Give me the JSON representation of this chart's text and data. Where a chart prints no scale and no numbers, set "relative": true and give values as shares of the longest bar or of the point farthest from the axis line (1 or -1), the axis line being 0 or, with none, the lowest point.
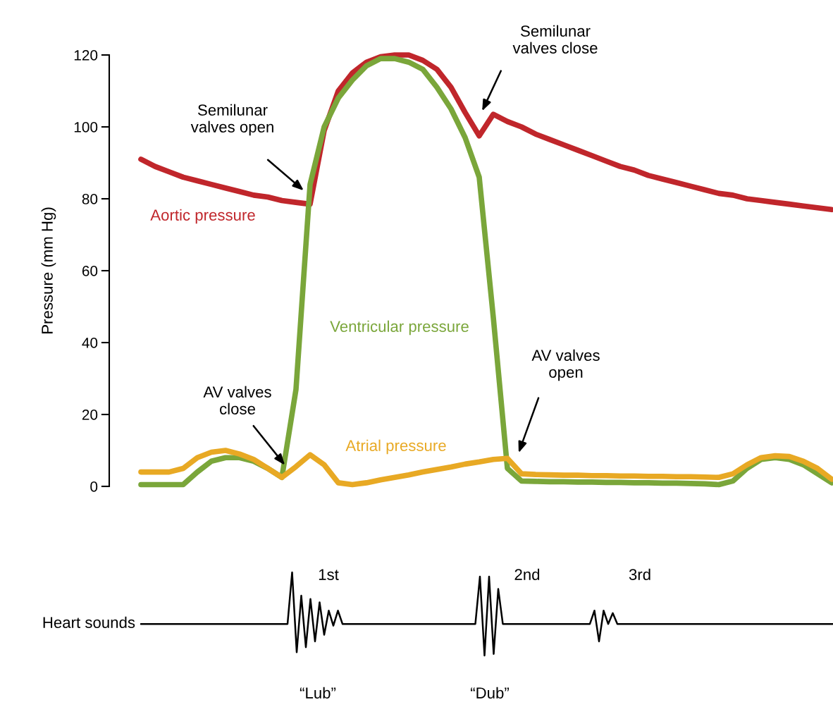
{
  "chart_data": [
    {
      "type": "line",
      "ylabel": "Pressure (mm Hg)",
      "categories": [
        null,
        null,
        null,
        null,
        null,
        null,
        null,
        null,
        null,
        null,
        null,
        null,
        null,
        null,
        null,
        null,
        null,
        null,
        null,
        null,
        null,
        null,
        null,
        null,
        null,
        null,
        null,
        null,
        null,
        null,
        null,
        null,
        null,
        null,
        null,
        null,
        null,
        null,
        null,
        null,
        null,
        null,
        null,
        null,
        null,
        null,
        null,
        null,
        null,
        null
      ],
      "series": [
        {
          "name": "Aortic pressure",
          "color": "#c0262b",
          "values": [
            91,
            89,
            87.5,
            86,
            85,
            84,
            83,
            82,
            81,
            80.5,
            79.5,
            79,
            78.5,
            99,
            110,
            115,
            118,
            119.5,
            120,
            120,
            118.5,
            116,
            111,
            104,
            97.5,
            103.5,
            101.5,
            100,
            98,
            96.5,
            95,
            93.5,
            92,
            90.5,
            89,
            88,
            86.5,
            85.5,
            84.5,
            83.5,
            82.5,
            81.5,
            81,
            80,
            79.5,
            79,
            78.5,
            78,
            77.5,
            77
          ]
        },
        {
          "name": "Ventricular pressure",
          "color": "#7aa63a",
          "values": [
            0.5,
            0.5,
            0.5,
            0.5,
            4,
            7,
            8,
            8,
            7,
            5,
            2.5,
            27,
            84,
            100,
            108,
            113,
            117,
            119,
            119,
            118,
            116,
            111,
            105,
            97,
            86,
            47,
            5,
            1.5,
            1.4,
            1.3,
            1.3,
            1.2,
            1.2,
            1.1,
            1.1,
            1,
            1,
            0.9,
            0.9,
            0.8,
            0.7,
            0.5,
            1.5,
            5,
            7.5,
            8,
            7.5,
            6,
            3.5,
            1
          ]
        },
        {
          "name": "Atrial pressure",
          "color": "#e8a924",
          "values": [
            4,
            4,
            4,
            5,
            8,
            9.5,
            10,
            9,
            7.5,
            5,
            2.5,
            5.5,
            8.8,
            6,
            1,
            0.5,
            1,
            1.8,
            2.5,
            3.2,
            4,
            4.7,
            5.4,
            6.2,
            6.8,
            7.5,
            7.8,
            3.5,
            3.3,
            3.2,
            3.1,
            3.1,
            3,
            3,
            2.9,
            2.9,
            2.8,
            2.8,
            2.7,
            2.7,
            2.6,
            2.5,
            3.5,
            6,
            8,
            8.5,
            8.3,
            7,
            5,
            2
          ]
        }
      ],
      "ylim": [
        0,
        120
      ],
      "yticks": [
        0,
        20,
        40,
        60,
        80,
        100,
        120
      ],
      "grid": false,
      "legend": false,
      "marker": "none",
      "line_style": "solid",
      "annotations": [
        "Semilunar\nvalves open",
        "Semilunar\nvalves close",
        "AV valves\nclose",
        "AV valves\nopen"
      ]
    },
    {
      "type": "line",
      "relative": true,
      "grid": false,
      "legend": false,
      "marker": "none",
      "line_style": "solid",
      "categories": [
        null,
        null,
        null,
        null,
        null,
        null,
        null,
        null,
        null,
        null,
        null,
        null,
        null,
        null,
        null,
        null,
        null,
        null,
        null,
        null,
        null,
        null,
        null,
        null,
        null,
        null,
        null,
        null,
        null,
        null,
        null,
        null,
        null,
        null,
        null,
        null,
        null,
        null,
        null,
        null,
        null,
        null,
        null,
        null,
        null,
        null,
        null,
        null,
        null,
        null,
        null,
        null,
        null,
        null,
        null,
        null,
        null,
        null,
        null,
        null,
        null,
        null,
        null,
        null,
        null,
        null,
        null,
        null,
        null,
        null,
        null,
        null,
        null,
        null,
        null,
        null,
        null,
        null,
        null,
        null,
        null,
        null,
        null,
        null,
        null,
        null,
        null,
        null,
        null,
        null,
        null,
        null,
        null,
        null,
        null,
        null,
        null,
        null,
        null,
        null,
        null,
        null,
        null,
        null,
        null,
        null,
        null,
        null,
        null,
        null,
        null,
        null,
        null,
        null,
        null,
        null,
        null,
        null,
        null,
        null,
        null,
        null,
        null,
        null,
        null,
        null,
        null,
        null,
        null,
        null,
        null,
        null,
        null,
        null,
        null,
        null,
        null,
        null,
        null,
        null,
        null,
        null,
        null,
        null,
        null,
        null,
        null,
        null,
        null,
        null,
        null,
        null
      ],
      "series": [
        {
          "name": "Heart sounds",
          "color": "#000000",
          "values": [
            0.38,
            0.38,
            0.38,
            0.38,
            0.38,
            0.38,
            0.38,
            0.38,
            0.38,
            0.38,
            0.38,
            0.38,
            0.38,
            0.38,
            0.38,
            0.38,
            0.38,
            0.38,
            0.38,
            0.38,
            0.38,
            0.38,
            0.38,
            0.38,
            0.38,
            0.38,
            0.38,
            0.38,
            0.38,
            0.38,
            0.38,
            0.38,
            0.38,
            1,
            0.04,
            0.72,
            0.1,
            0.68,
            0.17,
            0.64,
            0.25,
            0.54,
            0.36,
            0.54,
            0.38,
            0.38,
            0.38,
            0.38,
            0.38,
            0.38,
            0.38,
            0.38,
            0.38,
            0.38,
            0.38,
            0.38,
            0.38,
            0.38,
            0.38,
            0.38,
            0.38,
            0.38,
            0.38,
            0.38,
            0.38,
            0.38,
            0.38,
            0.38,
            0.38,
            0.38,
            0.38,
            0.38,
            0.38,
            0.38,
            0.95,
            0,
            0.95,
            0.02,
            0.8,
            0.38,
            0.38,
            0.38,
            0.38,
            0.38,
            0.38,
            0.38,
            0.38,
            0.38,
            0.38,
            0.38,
            0.38,
            0.38,
            0.38,
            0.38,
            0.38,
            0.38,
            0.38,
            0.38,
            0.38,
            0.54,
            0.17,
            0.54,
            0.38,
            0.51,
            0.38,
            0.38,
            0.38,
            0.38,
            0.38,
            0.38,
            0.38,
            0.38,
            0.38,
            0.38,
            0.38,
            0.38,
            0.38,
            0.38,
            0.38,
            0.38,
            0.38,
            0.38,
            0.38,
            0.38,
            0.38,
            0.38,
            0.38,
            0.38,
            0.38,
            0.38,
            0.38,
            0.38,
            0.38,
            0.38,
            0.38,
            0.38,
            0.38,
            0.38,
            0.38,
            0.38,
            0.38,
            0.38,
            0.38,
            0.38,
            0.38,
            0.38,
            0.38,
            0.38,
            0.38,
            0.38,
            0.38,
            0.38
          ]
        }
      ],
      "annotations": [
        "1st",
        "2nd",
        "3rd",
        "“Lub”",
        "“Dub”"
      ]
    }
  ]
}
